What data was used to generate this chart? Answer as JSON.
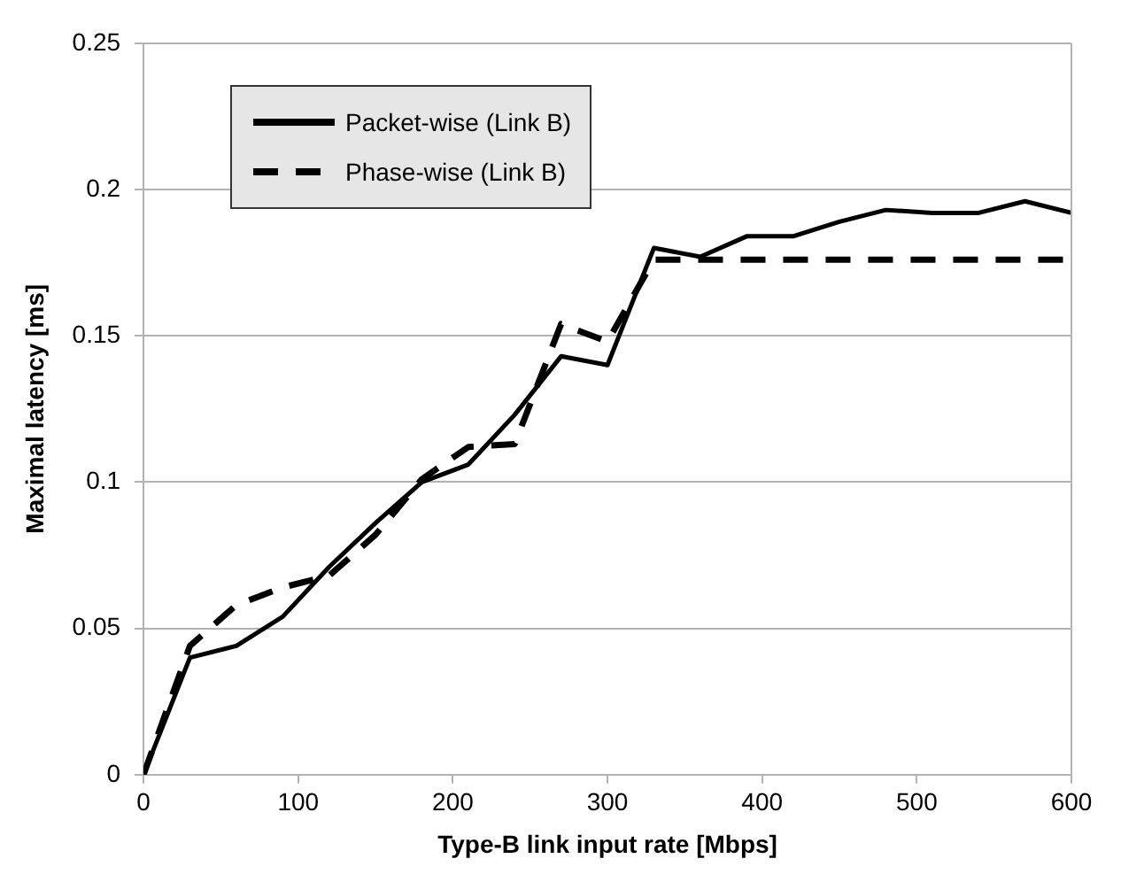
{
  "chart_data": {
    "type": "line",
    "xlabel": "Type-B link input rate [Mbps]",
    "ylabel": "Maximal latency [ms]",
    "x": [
      0,
      30,
      60,
      90,
      120,
      150,
      180,
      210,
      240,
      270,
      300,
      330,
      360,
      390,
      420,
      450,
      480,
      510,
      540,
      570,
      600
    ],
    "series": [
      {
        "name": "Packet-wise (Link B)",
        "color": "#000000",
        "line_style": "solid",
        "values": [
          0,
          0.04,
          0.044,
          0.054,
          0.071,
          0.086,
          0.1,
          0.106,
          0.123,
          0.143,
          0.14,
          0.18,
          0.177,
          0.184,
          0.184,
          0.189,
          0.193,
          0.192,
          0.192,
          0.196,
          0.192
        ]
      },
      {
        "name": "Phase-wise (Link B)",
        "color": "#000000",
        "line_style": "dashed",
        "values": [
          0,
          0.044,
          0.058,
          0.064,
          0.068,
          0.082,
          0.101,
          0.112,
          0.113,
          0.154,
          0.148,
          0.176,
          0.176,
          0.176,
          0.176,
          0.176,
          0.176,
          0.176,
          0.176,
          0.176,
          0.176
        ]
      }
    ],
    "xlim": [
      0,
      600
    ],
    "xticks": [
      0,
      100,
      200,
      300,
      400,
      500,
      600
    ],
    "ylim": [
      0,
      0.25
    ],
    "yticks": [
      0,
      0.05,
      0.1,
      0.15,
      0.2,
      0.25
    ],
    "grid": "y",
    "legend": "top left",
    "marker": "none"
  }
}
